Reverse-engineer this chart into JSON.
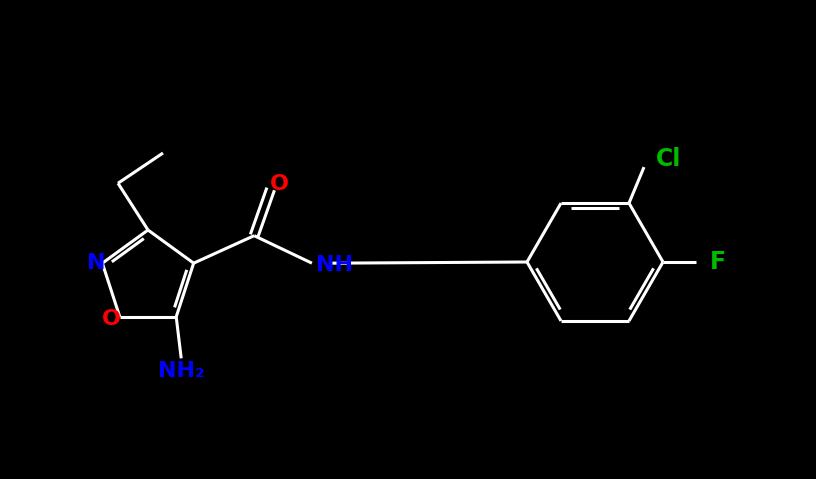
{
  "background_color": "#000000",
  "bond_color": "#ffffff",
  "bond_width": 2.2,
  "atom_colors": {
    "N": "#0000ff",
    "O": "#ff0000",
    "Cl": "#00bb00",
    "F": "#00bb00",
    "NH": "#0000ff",
    "NH2": "#0000ff"
  },
  "font_size": 16,
  "figsize": [
    8.16,
    4.79
  ],
  "dpi": 100
}
